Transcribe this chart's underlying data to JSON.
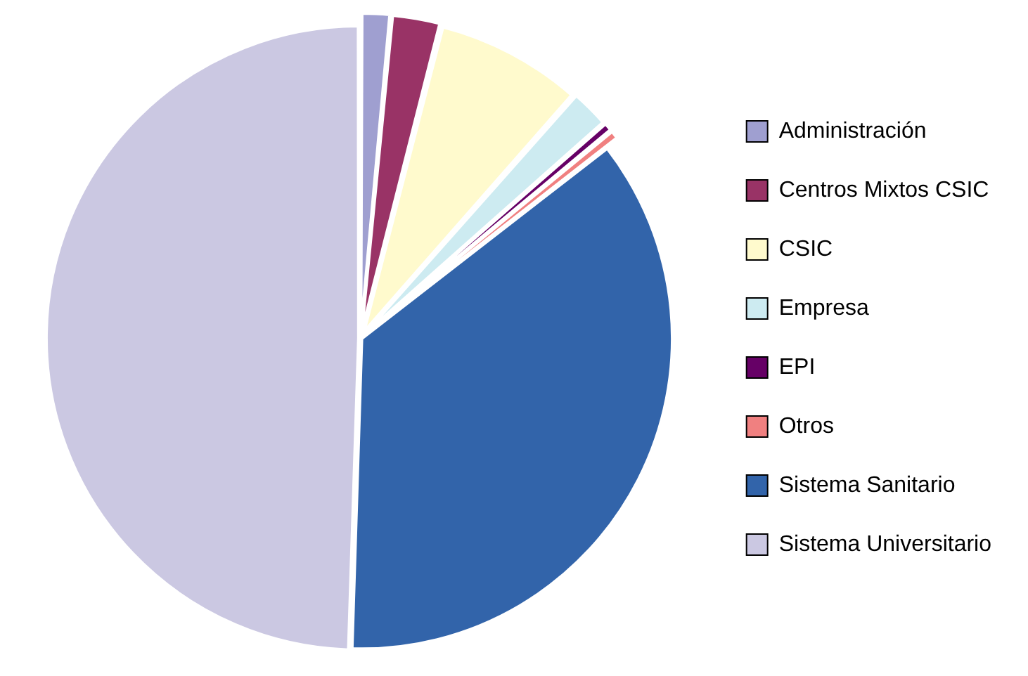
{
  "chart_data": {
    "type": "pie",
    "categories": [
      "Administración",
      "Centros Mixtos CSIC",
      "CSIC",
      "Empresa",
      "EPI",
      "Otros",
      "Sistema Sanitario",
      "Sistema Universitario"
    ],
    "values": [
      1.5,
      2.5,
      7.5,
      2,
      0.5,
      0.5,
      36,
      49.5
    ],
    "colors": [
      "#9f9fd0",
      "#993366",
      "#fffacd",
      "#cdebf1",
      "#660066",
      "#f08080",
      "#3264aa",
      "#cbc8e2"
    ],
    "legend": "right"
  }
}
